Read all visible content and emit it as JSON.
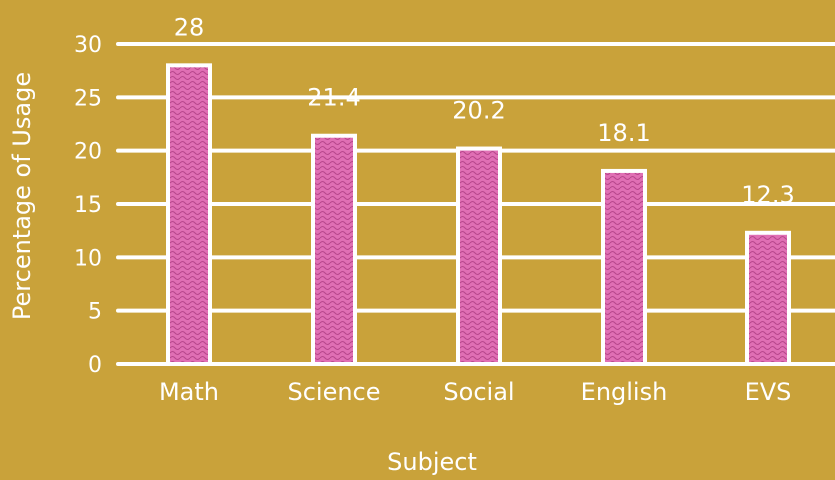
{
  "chart_data": {
    "type": "bar",
    "categories": [
      "Math",
      "Science",
      "Social",
      "English",
      "EVS"
    ],
    "values": [
      28,
      21.4,
      20.2,
      18.1,
      12.3
    ],
    "data_labels": [
      "28",
      "21.4",
      "20.2",
      "18.1",
      "12.3"
    ],
    "xlabel": "Subject",
    "ylabel": "Percentage of Usage",
    "ylim": [
      0,
      30
    ],
    "yticks": [
      0,
      5,
      10,
      15,
      20,
      25,
      30
    ],
    "grid": true,
    "colors": {
      "background": "#c9a23a",
      "bar": "#e06fb4",
      "bar_pattern": "#b8468c",
      "grid": "#ffffff",
      "text": "#ffffff"
    }
  }
}
